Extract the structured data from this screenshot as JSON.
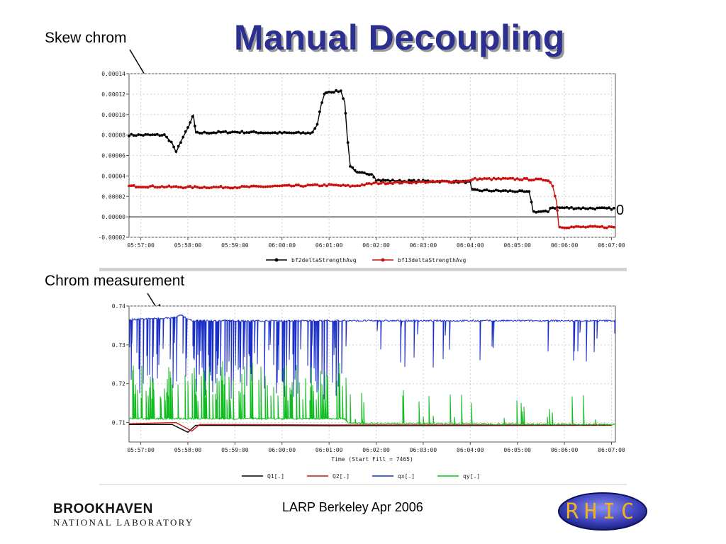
{
  "slide": {
    "title": "Manual Decoupling",
    "callout_top": "Skew chrom",
    "callout_bottom": "Chrom measurement",
    "zero_marker": "0",
    "footer": "LARP Berkeley  Apr 2006"
  },
  "logos": {
    "bnl_name": "BROOKHAVEN",
    "bnl_sub": "NATIONAL LABORATORY",
    "rhic": "RHIC"
  },
  "chart_data": [
    {
      "type": "line",
      "title": "",
      "xlabel": "",
      "ylabel": "",
      "x_ticks": [
        "05:57:00",
        "05:58:00",
        "05:59:00",
        "06:00:00",
        "06:01:00",
        "06:02:00",
        "06:03:00",
        "06:04:00",
        "06:05:00",
        "06:06:00",
        "06:07:00"
      ],
      "y_ticks": [
        "0.00014",
        "0.00012",
        "0.00010",
        "0.00008",
        "0.00006",
        "0.00004",
        "0.00002",
        "0.00000",
        "-0.00002"
      ],
      "ylim": [
        -2e-05,
        0.00014
      ],
      "xlim": [
        "05:56:45",
        "06:07:05"
      ],
      "grid": true,
      "legend_position": "bottom",
      "series": [
        {
          "name": "bf2deltaStrengthAvg",
          "color": "#000000",
          "marker": "dot",
          "points": [
            [
              "05:56:45",
              8e-05
            ],
            [
              "05:57:30",
              8e-05
            ],
            [
              "05:57:40",
              7.2e-05
            ],
            [
              "05:57:45",
              6.3e-05
            ],
            [
              "05:57:50",
              7.2e-05
            ],
            [
              "05:58:02",
              9e-05
            ],
            [
              "05:58:07",
              0.0001
            ],
            [
              "05:58:10",
              8.2e-05
            ],
            [
              "05:59:00",
              8.3e-05
            ],
            [
              "06:00:00",
              8.2e-05
            ],
            [
              "06:00:38",
              8.2e-05
            ],
            [
              "06:00:45",
              9e-05
            ],
            [
              "06:00:50",
              0.00011
            ],
            [
              "06:00:55",
              0.000122
            ],
            [
              "06:01:15",
              0.000123
            ],
            [
              "06:01:20",
              0.000112
            ],
            [
              "06:01:23",
              8e-05
            ],
            [
              "06:01:27",
              5e-05
            ],
            [
              "06:01:35",
              4.3e-05
            ],
            [
              "06:01:55",
              4.2e-05
            ],
            [
              "06:02:00",
              3.6e-05
            ],
            [
              "06:02:30",
              3.5e-05
            ],
            [
              "06:03:00",
              3.5e-05
            ],
            [
              "06:04:00",
              3.4e-05
            ],
            [
              "06:04:02",
              2.6e-05
            ],
            [
              "06:05:00",
              2.5e-05
            ],
            [
              "06:05:15",
              2.4e-05
            ],
            [
              "06:05:18",
              1.5e-05
            ],
            [
              "06:05:20",
              5e-06
            ],
            [
              "06:05:40",
              5e-06
            ],
            [
              "06:05:42",
              9e-06
            ],
            [
              "06:07:00",
              8e-06
            ]
          ]
        },
        {
          "name": "bf13deltaStrengthAvg",
          "color": "#cc1111",
          "marker": "dot",
          "points": [
            [
              "05:56:45",
              3e-05
            ],
            [
              "05:58:00",
              2.9e-05
            ],
            [
              "05:59:00",
              2.9e-05
            ],
            [
              "06:00:00",
              3e-05
            ],
            [
              "06:01:00",
              3.1e-05
            ],
            [
              "06:01:30",
              3e-05
            ],
            [
              "06:02:00",
              3.3e-05
            ],
            [
              "06:03:00",
              3.4e-05
            ],
            [
              "06:04:00",
              3.5e-05
            ],
            [
              "06:04:02",
              3.7e-05
            ],
            [
              "06:05:00",
              3.7e-05
            ],
            [
              "06:05:40",
              3.6e-05
            ],
            [
              "06:05:45",
              3e-05
            ],
            [
              "06:05:50",
              1.5e-05
            ],
            [
              "06:05:53",
              -1e-05
            ],
            [
              "06:07:00",
              -1e-05
            ]
          ]
        }
      ]
    },
    {
      "type": "line",
      "title": "",
      "xlabel": "Time (Start Fill = 7465)",
      "ylabel": "",
      "x_ticks": [
        "05:57:00",
        "05:58:00",
        "05:59:00",
        "06:00:00",
        "06:01:00",
        "06:02:00",
        "06:03:00",
        "06:04:00",
        "06:05:00",
        "06:06:00",
        "06:07:00"
      ],
      "y_ticks": [
        "0.74",
        "0.73",
        "0.72",
        "0.71"
      ],
      "ylim": [
        0.705,
        0.74
      ],
      "xlim": [
        "05:56:45",
        "06:07:05"
      ],
      "grid": true,
      "legend_position": "bottom",
      "series": [
        {
          "name": "Q1[.]",
          "color": "#000000",
          "points": [
            [
              "05:56:45",
              0.7095
            ],
            [
              "05:57:40",
              0.7095
            ],
            [
              "05:58:00",
              0.7075
            ],
            [
              "05:58:10",
              0.7093
            ],
            [
              "06:01:00",
              0.7092
            ],
            [
              "06:07:00",
              0.7093
            ]
          ]
        },
        {
          "name": "Q2[.]",
          "color": "#cc1111",
          "points": [
            [
              "05:56:45",
              0.7097
            ],
            [
              "05:57:45",
              0.71
            ],
            [
              "05:58:05",
              0.7078
            ],
            [
              "05:58:15",
              0.7095
            ],
            [
              "06:01:00",
              0.7094
            ],
            [
              "06:07:00",
              0.7094
            ]
          ]
        },
        {
          "name": "qx[.]",
          "color": "#1a2fc8",
          "baseline": 0.7365,
          "noisy": true,
          "peak": [
            "05:57:50",
            0.7378
          ],
          "points": [
            [
              "05:56:45",
              0.7365
            ],
            [
              "05:57:45",
              0.737
            ],
            [
              "05:57:50",
              0.7378
            ],
            [
              "05:58:05",
              0.7362
            ],
            [
              "06:07:00",
              0.7362
            ]
          ]
        },
        {
          "name": "qy[.]",
          "color": "#11bb22",
          "baseline": 0.71,
          "noisy": true,
          "points": [
            [
              "05:56:45",
              0.711
            ],
            [
              "06:01:20",
              0.711
            ],
            [
              "06:01:25",
              0.7098
            ],
            [
              "06:07:00",
              0.7095
            ]
          ]
        }
      ]
    }
  ]
}
